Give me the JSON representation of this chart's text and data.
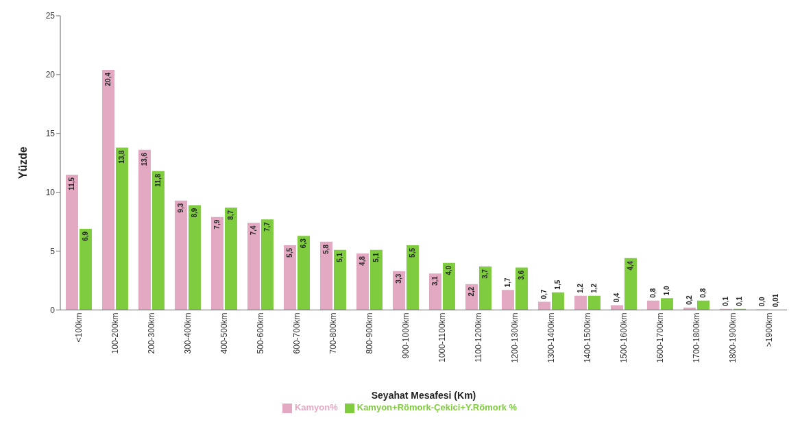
{
  "chart_data": {
    "type": "bar",
    "xlabel": "Seyahat Mesafesi (Km)",
    "ylabel": "Yüzde",
    "categories": [
      "<100km",
      "100-200km",
      "200-300km",
      "300-400km",
      "400-500km",
      "500-600km",
      "600-700km",
      "700-800km",
      "800-900km",
      "900-1000km",
      "1000-1100km",
      "1100-1200km",
      "1200-1300km",
      "1300-1400km",
      "1400-1500km",
      "1500-1600km",
      "1600-1700km",
      "1700-1800km",
      "1800-1900km",
      ">1900km"
    ],
    "series": [
      {
        "name": "Kamyon%",
        "color": "#e3a9c3",
        "values": [
          11.5,
          20.4,
          13.6,
          9.3,
          7.9,
          7.4,
          5.5,
          5.8,
          4.8,
          3.3,
          3.1,
          2.2,
          1.7,
          0.7,
          1.2,
          0.4,
          0.8,
          0.2,
          0.1,
          0.0
        ],
        "value_labels": [
          "11,5",
          "20,4",
          "13,6",
          "9,3",
          "7,9",
          "7,4",
          "5,5",
          "5,8",
          "4,8",
          "3,3",
          "3,1",
          "2,2",
          "1,7",
          "0,7",
          "1,2",
          "0,4",
          "0,8",
          "0,2",
          "0,1",
          "0,0"
        ]
      },
      {
        "name": "Kamyon+Römork-Çekici+Y.Römork %",
        "color": "#7fcc3f",
        "values": [
          6.9,
          13.8,
          11.8,
          8.9,
          8.7,
          7.7,
          6.3,
          5.1,
          5.1,
          5.5,
          4.0,
          3.7,
          3.6,
          1.5,
          1.2,
          4.4,
          1.0,
          0.8,
          0.1,
          0.01
        ],
        "value_labels": [
          "6,9",
          "13,8",
          "11,8",
          "8,9",
          "8,7",
          "7,7",
          "6,3",
          "5,1",
          "5,1",
          "5,5",
          "4,0",
          "3,7",
          "3,6",
          "1,5",
          "1,2",
          "4,4",
          "1,0",
          "0,8",
          "0,1",
          "0,01"
        ]
      }
    ],
    "ylim": [
      0,
      25
    ],
    "yticks": [
      0,
      5,
      10,
      15,
      20,
      25
    ],
    "grid": false,
    "legend": "bottom"
  }
}
